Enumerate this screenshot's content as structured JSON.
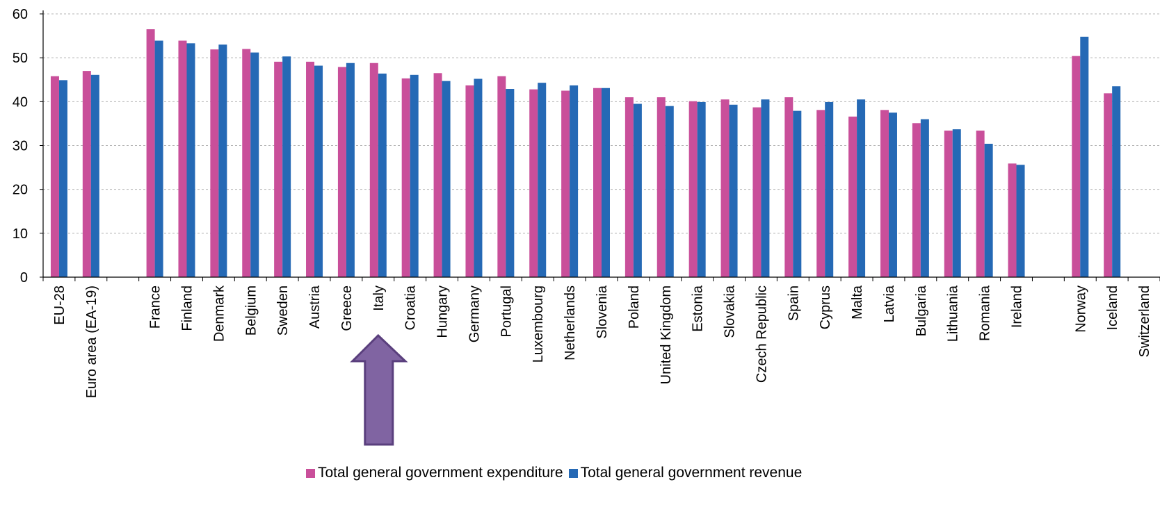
{
  "chart_data": {
    "type": "bar",
    "title": "",
    "xlabel": "",
    "ylabel": "",
    "ylim": [
      0,
      60
    ],
    "yticks": [
      "0",
      "10",
      "20",
      "30",
      "40",
      "50",
      "60"
    ],
    "grid": true,
    "legend_position": "bottom-center",
    "categories": [
      "EU-28",
      "Euro area (EA-19)",
      "",
      "France",
      "Finland",
      "Denmark",
      "Belgium",
      "Sweden",
      "Austria",
      "Greece",
      "Italy",
      "Croatia",
      "Hungary",
      "Germany",
      "Portugal",
      "Luxembourg",
      "Netherlands",
      "Slovenia",
      "Poland",
      "United Kingdom",
      "Estonia",
      "Slovakia",
      "Czech Republic",
      "Spain",
      "Cyprus",
      "Malta",
      "Latvia",
      "Bulgaria",
      "Lithuania",
      "Romania",
      "Ireland",
      "",
      "Norway",
      "Iceland",
      "Switzerland"
    ],
    "series": [
      {
        "name": "Total general government expenditure",
        "color": "#c94f9a",
        "values": [
          45.8,
          47.0,
          null,
          56.5,
          53.9,
          51.9,
          52.0,
          49.1,
          49.1,
          47.9,
          48.8,
          45.3,
          46.5,
          43.7,
          45.8,
          42.8,
          42.5,
          43.1,
          41.0,
          41.0,
          40.1,
          40.5,
          38.7,
          41.0,
          38.1,
          36.6,
          38.1,
          35.1,
          33.4,
          33.4,
          25.9,
          null,
          50.4,
          41.9,
          null
        ]
      },
      {
        "name": "Total general government revenue",
        "color": "#2569b5",
        "values": [
          44.9,
          46.1,
          null,
          53.9,
          53.3,
          53.0,
          51.2,
          50.3,
          48.2,
          48.8,
          46.4,
          46.1,
          44.7,
          45.2,
          42.9,
          44.3,
          43.7,
          43.1,
          39.5,
          39.0,
          39.9,
          39.3,
          40.5,
          37.9,
          39.9,
          40.5,
          37.5,
          36.0,
          33.7,
          30.4,
          25.6,
          null,
          54.8,
          43.5,
          null
        ]
      }
    ]
  },
  "annotation": {
    "arrow": "up-arrow-pointing-at-italy",
    "color": "#8064a2"
  }
}
